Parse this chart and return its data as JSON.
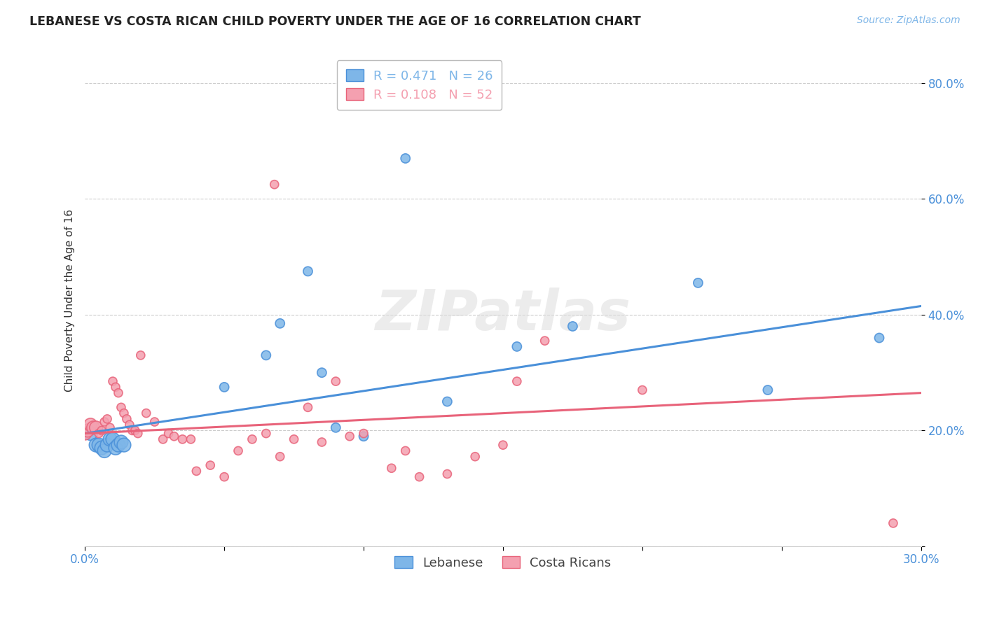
{
  "title": "LEBANESE VS COSTA RICAN CHILD POVERTY UNDER THE AGE OF 16 CORRELATION CHART",
  "source": "Source: ZipAtlas.com",
  "ylabel": "Child Poverty Under the Age of 16",
  "xlim": [
    0.0,
    0.3
  ],
  "ylim": [
    0.0,
    0.85
  ],
  "xticks": [
    0.0,
    0.05,
    0.1,
    0.15,
    0.2,
    0.25,
    0.3
  ],
  "yticks": [
    0.0,
    0.2,
    0.4,
    0.6,
    0.8
  ],
  "ytick_labels": [
    "",
    "20.0%",
    "40.0%",
    "60.0%",
    "80.0%"
  ],
  "xtick_labels": [
    "0.0%",
    "",
    "",
    "",
    "",
    "",
    "30.0%"
  ],
  "legend_entries": [
    {
      "label": "R = 0.471   N = 26",
      "color": "#7EB6E8"
    },
    {
      "label": "R = 0.108   N = 52",
      "color": "#F4A0B0"
    }
  ],
  "legend_labels_bottom": [
    "Lebanese",
    "Costa Ricans"
  ],
  "color_lebanese": "#7EB6E8",
  "color_costarican": "#F4A0B0",
  "line_color_lebanese": "#4A90D9",
  "line_color_costarican": "#E8637A",
  "watermark": "ZIPatlas",
  "lebanese_x": [
    0.002,
    0.004,
    0.005,
    0.006,
    0.007,
    0.008,
    0.009,
    0.01,
    0.011,
    0.012,
    0.013,
    0.014,
    0.05,
    0.065,
    0.07,
    0.08,
    0.085,
    0.09,
    0.1,
    0.115,
    0.13,
    0.155,
    0.175,
    0.22,
    0.245,
    0.285
  ],
  "lebanese_y": [
    0.195,
    0.175,
    0.175,
    0.17,
    0.165,
    0.175,
    0.185,
    0.185,
    0.17,
    0.175,
    0.18,
    0.175,
    0.275,
    0.33,
    0.385,
    0.475,
    0.3,
    0.205,
    0.19,
    0.67,
    0.25,
    0.345,
    0.38,
    0.455,
    0.27,
    0.36
  ],
  "costarican_x": [
    0.0,
    0.001,
    0.002,
    0.003,
    0.004,
    0.005,
    0.006,
    0.007,
    0.008,
    0.009,
    0.01,
    0.011,
    0.012,
    0.013,
    0.014,
    0.015,
    0.016,
    0.017,
    0.018,
    0.019,
    0.02,
    0.022,
    0.025,
    0.028,
    0.03,
    0.032,
    0.035,
    0.038,
    0.04,
    0.045,
    0.05,
    0.055,
    0.06,
    0.065,
    0.068,
    0.07,
    0.075,
    0.08,
    0.085,
    0.09,
    0.095,
    0.1,
    0.11,
    0.115,
    0.12,
    0.13,
    0.14,
    0.15,
    0.155,
    0.165,
    0.2,
    0.29
  ],
  "costarican_y": [
    0.195,
    0.2,
    0.21,
    0.205,
    0.205,
    0.195,
    0.2,
    0.215,
    0.22,
    0.205,
    0.285,
    0.275,
    0.265,
    0.24,
    0.23,
    0.22,
    0.21,
    0.2,
    0.2,
    0.195,
    0.33,
    0.23,
    0.215,
    0.185,
    0.195,
    0.19,
    0.185,
    0.185,
    0.13,
    0.14,
    0.12,
    0.165,
    0.185,
    0.195,
    0.625,
    0.155,
    0.185,
    0.24,
    0.18,
    0.285,
    0.19,
    0.195,
    0.135,
    0.165,
    0.12,
    0.125,
    0.155,
    0.175,
    0.285,
    0.355,
    0.27,
    0.04
  ]
}
